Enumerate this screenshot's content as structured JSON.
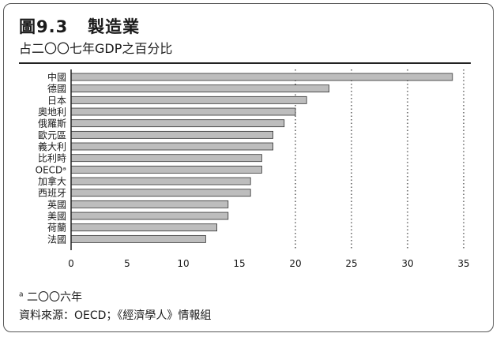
{
  "header": {
    "title": "圖9.3   製造業",
    "subtitle": "占二〇〇七年GDP之百分比"
  },
  "footer": {
    "footnote_marker": "a",
    "footnote_text": "二〇〇六年",
    "source": "資料來源：OECD；《經濟學人》情報組"
  },
  "chart_data": {
    "type": "bar",
    "orientation": "horizontal",
    "categories": [
      "中國",
      "德國",
      "日本",
      "奧地利",
      "俄羅斯",
      "歐元區",
      "義大利",
      "比利時",
      "OECDᵃ",
      "加拿大",
      "西班牙",
      "英國",
      "美國",
      "荷蘭",
      "法國"
    ],
    "values": [
      34,
      23,
      21,
      20,
      19,
      18,
      18,
      17,
      17,
      16,
      16,
      14,
      14,
      13,
      12
    ],
    "xlim": [
      0,
      35
    ],
    "xticks": [
      0,
      5,
      10,
      15,
      20,
      25,
      30,
      35
    ],
    "gridlines": "dotted vertical at 20, 25, 30, 35",
    "bar_color": "#bdbdbd",
    "bar_edge_color": "#333333"
  }
}
